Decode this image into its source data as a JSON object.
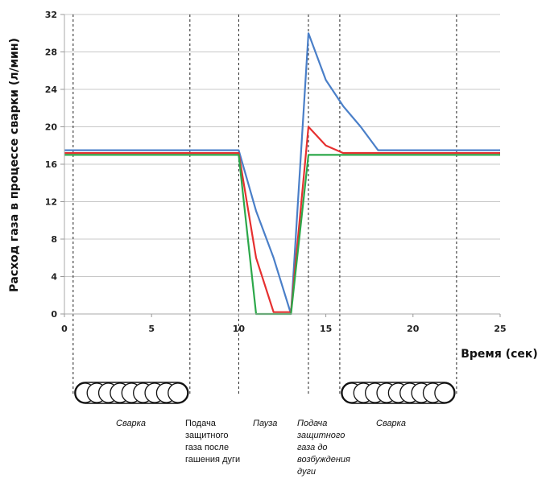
{
  "chart_data": {
    "type": "line",
    "ylabel": "Расход газа в процессе сварки (л/мин)",
    "xlabel": "Время (сек)",
    "xlim": [
      0,
      25
    ],
    "ylim": [
      0,
      32
    ],
    "xticks": [
      0,
      5,
      10,
      15,
      20,
      25
    ],
    "yticks": [
      0,
      4,
      8,
      12,
      16,
      20,
      24,
      28,
      32
    ],
    "grid": "horizontal",
    "series": [
      {
        "color": "#4a7fc8",
        "points": [
          [
            0,
            17.5
          ],
          [
            10,
            17.5
          ],
          [
            11,
            11
          ],
          [
            12,
            6
          ],
          [
            13,
            0
          ],
          [
            14,
            30
          ],
          [
            15,
            25
          ],
          [
            16,
            22.2
          ],
          [
            17,
            20
          ],
          [
            18,
            17.5
          ],
          [
            25,
            17.5
          ]
        ]
      },
      {
        "color": "#e63030",
        "points": [
          [
            0,
            17.2
          ],
          [
            10,
            17.2
          ],
          [
            11,
            6
          ],
          [
            12,
            0.2
          ],
          [
            13,
            0.2
          ],
          [
            14,
            20
          ],
          [
            15,
            18
          ],
          [
            16,
            17.2
          ],
          [
            25,
            17.2
          ]
        ]
      },
      {
        "color": "#2ca84a",
        "points": [
          [
            0,
            17
          ],
          [
            10,
            17
          ],
          [
            11,
            0
          ],
          [
            13,
            0
          ],
          [
            14,
            17
          ],
          [
            25,
            17
          ]
        ]
      }
    ],
    "phase_dividers_x": [
      0.5,
      7.2,
      10,
      14,
      15.8,
      22.5
    ],
    "phases": [
      {
        "label": "Сварка",
        "italic": true
      },
      {
        "label": "Подача защитного газа после гашения дуги",
        "italic": false
      },
      {
        "label": "Пауза",
        "italic": true
      },
      {
        "label": "Подача защитного газа до возбуждения дуги",
        "italic": true
      },
      {
        "label": "Сварка",
        "italic": true
      }
    ]
  },
  "phase_text": {
    "svarka1": "Сварка",
    "postgas": [
      "Подача",
      "защитного",
      "газа после",
      "гашения дуги"
    ],
    "pause": "Пауза",
    "pregas": [
      "Подача",
      "защитного",
      "газа до",
      "возбуждения",
      "дуги"
    ],
    "svarka2": "Сварка"
  }
}
